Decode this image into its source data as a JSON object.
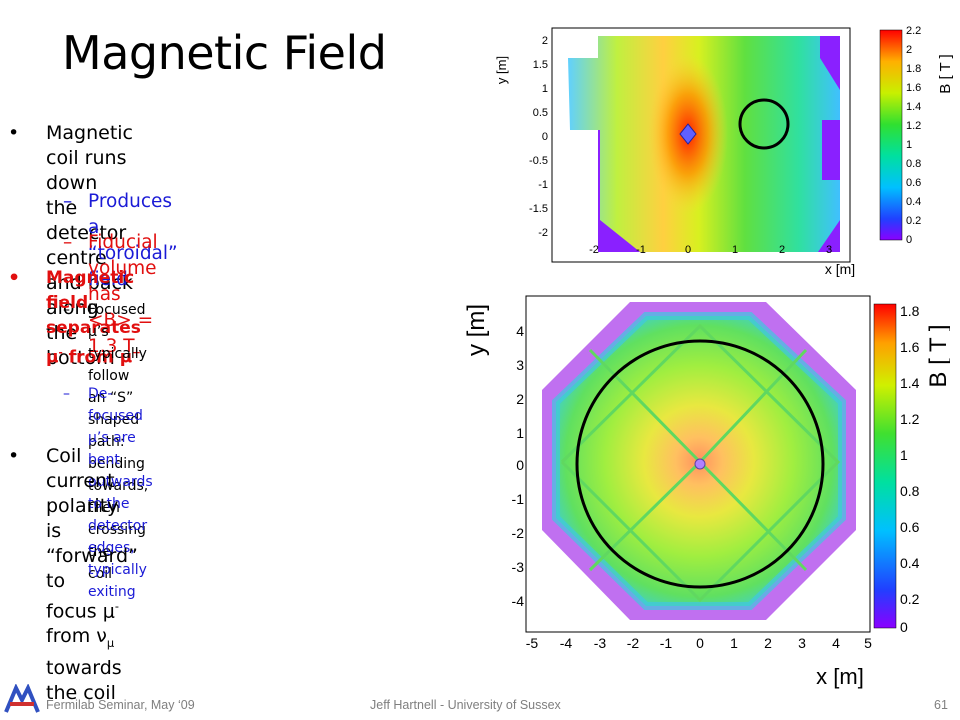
{
  "slide": {
    "title": "Magnetic Field",
    "bullet1_line1": "Magnetic coil runs down the detector",
    "bullet1_line2": "centre and back along the bottom",
    "sub1": "Produces a “toroidal” field",
    "sub2": "Fiducial volume has <B> = 1.3 T",
    "bullet2_prefix": "Magnetic field separates μ",
    "bullet2_sup1": "-",
    "bullet2_mid": " from μ",
    "bullet2_sup2": "+",
    "sub3_line1": "Focused μ’s typically follow an “S” shaped",
    "sub3_line2": "path: bending towards, then crossing the",
    "sub3_line3": "coil",
    "sub4_line1": "De-focused μ’s are bent outwards to the",
    "sub4_line2": "detector edges, typically exiting",
    "bullet3_line1": "Coil current polarity is “forward” to",
    "bullet3_line2_a": "focus μ",
    "bullet3_line2_sup": "-",
    "bullet3_line2_b": " from ν",
    "bullet3_line2_sub": "μ",
    "bullet3_line2_c": " towards the coil",
    "dash": "–",
    "bullet_char": "•"
  },
  "footer": {
    "left": "Fermilab Seminar, May ‘09",
    "center": "Jeff Hartnell - University of Sussex",
    "page": "61"
  },
  "colors": {
    "red_text": "#e10f0f",
    "blue_text": "#1b1bd6",
    "footer_gray": "#7f7f7f"
  },
  "plots": {
    "top": {
      "y_axis_label": "y [m]",
      "x_axis_label": "x [m]",
      "colorbar_label": "B [ T ]",
      "y_ticks": [
        "2",
        "1.5",
        "1",
        "0.5",
        "0",
        "-0.5",
        "-1",
        "-1.5",
        "-2"
      ],
      "x_ticks": [
        "-2",
        "-1",
        "0",
        "1",
        "2",
        "3"
      ],
      "colorbar_ticks": [
        "2.2",
        "2",
        "1.8",
        "1.6",
        "1.4",
        "1.2",
        "1",
        "0.8",
        "0.6",
        "0.4",
        "0.2",
        "0"
      ]
    },
    "bottom": {
      "y_axis_label": "y [m]",
      "x_axis_label": "x [m]",
      "colorbar_label": "B [ T ]",
      "y_ticks": [
        "4",
        "3",
        "2",
        "1",
        "0",
        "-1",
        "-2",
        "-3",
        "-4"
      ],
      "x_ticks": [
        "-5",
        "-4",
        "-3",
        "-2",
        "-1",
        "0",
        "1",
        "2",
        "3",
        "4",
        "5"
      ],
      "colorbar_ticks": [
        "1.8",
        "1.6",
        "1.4",
        "1.2",
        "1",
        "0.8",
        "0.6",
        "0.4",
        "0.2",
        "0"
      ]
    }
  }
}
